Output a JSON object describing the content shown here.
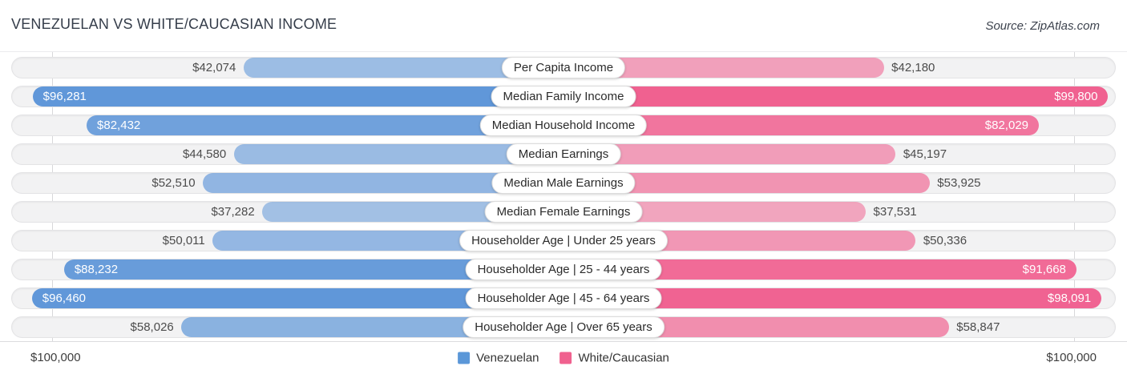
{
  "header": {
    "title": "VENEZUELAN VS WHITE/CAUCASIAN INCOME",
    "source": "Source: ZipAtlas.com"
  },
  "footer": {
    "axis_left": "$100,000",
    "axis_right": "$100,000"
  },
  "legend": {
    "items": [
      {
        "label": "Venezuelan",
        "color": "#5B97D8"
      },
      {
        "label": "White/Caucasian",
        "color": "#F0618F"
      }
    ]
  },
  "chart_data": {
    "type": "bar",
    "orientation": "diverging-horizontal",
    "axis_max": 100000,
    "axis_tick_labels": [
      "$100,000",
      "$100,000"
    ],
    "grid": "edge gridlines at $100,000 both sides",
    "legend_position": "bottom-center",
    "categories": [
      "Per Capita Income",
      "Median Family Income",
      "Median Household Income",
      "Median Earnings",
      "Median Male Earnings",
      "Median Female Earnings",
      "Householder Age | Under 25 years",
      "Householder Age | 25 - 44 years",
      "Householder Age | 45 - 64 years",
      "Householder Age | Over 65 years"
    ],
    "series": [
      {
        "name": "Venezuelan",
        "side": "left",
        "base_color_rgb": "91,148,216",
        "values": [
          42074,
          96281,
          82432,
          44580,
          52510,
          37282,
          50011,
          88232,
          96460,
          58026
        ],
        "formatted": [
          "$42,074",
          "$96,281",
          "$82,432",
          "$44,580",
          "$52,510",
          "$37,282",
          "$50,011",
          "$88,232",
          "$96,460",
          "$58,026"
        ]
      },
      {
        "name": "White/Caucasian",
        "side": "right",
        "base_color_rgb": "240,97,144",
        "values": [
          42180,
          99800,
          82029,
          45197,
          53925,
          37531,
          50336,
          91668,
          98091,
          58847
        ],
        "formatted": [
          "$42,180",
          "$99,800",
          "$82,029",
          "$45,197",
          "$53,925",
          "$37,531",
          "$50,336",
          "$91,668",
          "$98,091",
          "$58,847"
        ]
      }
    ]
  }
}
